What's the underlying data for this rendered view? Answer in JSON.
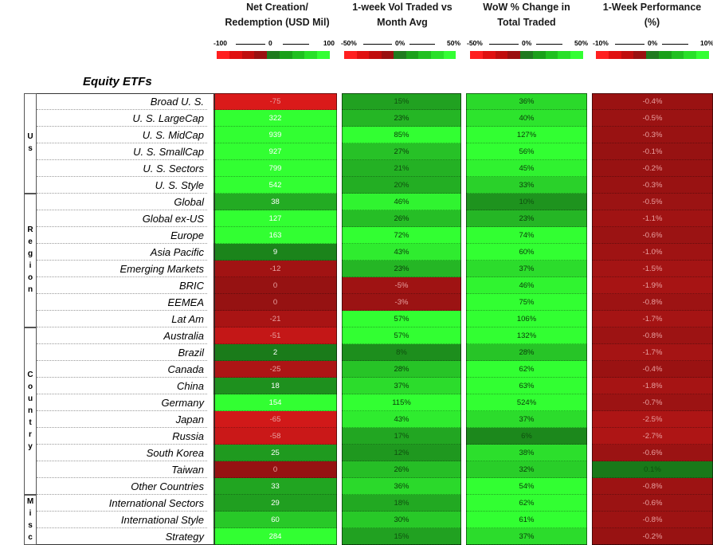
{
  "headers": [
    "Net Creation/\nRedemption (USD Mil)",
    "1-week Vol Traded vs\nMonth Avg",
    "WoW % Change in\nTotal Traded",
    "1-Week Performance\n(%)"
  ],
  "scales": [
    {
      "left": "-100",
      "mid": "0",
      "right": "100"
    },
    {
      "left": "-50%",
      "mid": "0%",
      "right": "50%"
    },
    {
      "left": "-50%",
      "mid": "0%",
      "right": "50%"
    },
    {
      "left": "-10%",
      "mid": "0%",
      "right": "10%"
    }
  ],
  "scale_colors": [
    "#ff1f1f",
    "#e01010",
    "#c00d0d",
    "#9a1010",
    "#1e7a1e",
    "#1aa01a",
    "#20c020",
    "#28e028",
    "#33ff33"
  ],
  "section_title": "Equity ETFs",
  "groups": [
    {
      "label": "Us",
      "rows": [
        0,
        5
      ]
    },
    {
      "label": "Region",
      "rows": [
        6,
        13
      ]
    },
    {
      "label": "Country",
      "rows": [
        14,
        23
      ]
    },
    {
      "label": "Misc",
      "rows": [
        24,
        26
      ]
    }
  ],
  "chart_data": {
    "type": "table",
    "columns": [
      "Net Creation/ Redemption (USD Mil)",
      "1-week Vol Traded vs Month Avg",
      "WoW % Change in Total Traded",
      "1-Week Performance (%)"
    ],
    "rows": [
      {
        "label": "Broad U. S.",
        "values": [
          "-75",
          "15%",
          "36%",
          "-0.4%"
        ],
        "nums": [
          -75,
          15,
          36,
          -0.4
        ]
      },
      {
        "label": "U. S. LargeCap",
        "values": [
          "322",
          "23%",
          "40%",
          "-0.5%"
        ],
        "nums": [
          322,
          23,
          40,
          -0.5
        ]
      },
      {
        "label": "U. S. MidCap",
        "values": [
          "939",
          "85%",
          "127%",
          "-0.3%"
        ],
        "nums": [
          939,
          85,
          127,
          -0.3
        ]
      },
      {
        "label": "U. S. SmallCap",
        "values": [
          "927",
          "27%",
          "56%",
          "-0.1%"
        ],
        "nums": [
          927,
          27,
          56,
          -0.1
        ]
      },
      {
        "label": "U. S. Sectors",
        "values": [
          "799",
          "21%",
          "45%",
          "-0.2%"
        ],
        "nums": [
          799,
          21,
          45,
          -0.2
        ]
      },
      {
        "label": "U. S. Style",
        "values": [
          "542",
          "20%",
          "33%",
          "-0.3%"
        ],
        "nums": [
          542,
          20,
          33,
          -0.3
        ]
      },
      {
        "label": "Global",
        "values": [
          "38",
          "46%",
          "10%",
          "-0.5%"
        ],
        "nums": [
          38,
          46,
          10,
          -0.5
        ]
      },
      {
        "label": "Global ex-US",
        "values": [
          "127",
          "26%",
          "23%",
          "-1.1%"
        ],
        "nums": [
          127,
          26,
          23,
          -1.1
        ]
      },
      {
        "label": "Europe",
        "values": [
          "163",
          "72%",
          "74%",
          "-0.6%"
        ],
        "nums": [
          163,
          72,
          74,
          -0.6
        ]
      },
      {
        "label": "Asia Pacific",
        "values": [
          "9",
          "43%",
          "60%",
          "-1.0%"
        ],
        "nums": [
          9,
          43,
          60,
          -1.0
        ]
      },
      {
        "label": "Emerging Markets",
        "values": [
          "-12",
          "23%",
          "37%",
          "-1.5%"
        ],
        "nums": [
          -12,
          23,
          37,
          -1.5
        ]
      },
      {
        "label": "BRIC",
        "values": [
          "0",
          "-5%",
          "46%",
          "-1.9%"
        ],
        "nums": [
          0,
          -5,
          46,
          -1.9
        ]
      },
      {
        "label": "EEMEA",
        "values": [
          "0",
          "-3%",
          "75%",
          "-0.8%"
        ],
        "nums": [
          0,
          -3,
          75,
          -0.8
        ]
      },
      {
        "label": "Lat Am",
        "values": [
          "-21",
          "57%",
          "106%",
          "-1.7%"
        ],
        "nums": [
          -21,
          57,
          106,
          -1.7
        ]
      },
      {
        "label": "Australia",
        "values": [
          "-51",
          "57%",
          "132%",
          "-0.8%"
        ],
        "nums": [
          -51,
          57,
          132,
          -0.8
        ]
      },
      {
        "label": "Brazil",
        "values": [
          "2",
          "8%",
          "28%",
          "-1.7%"
        ],
        "nums": [
          2,
          8,
          28,
          -1.7
        ]
      },
      {
        "label": "Canada",
        "values": [
          "-25",
          "28%",
          "62%",
          "-0.4%"
        ],
        "nums": [
          -25,
          28,
          62,
          -0.4
        ]
      },
      {
        "label": "China",
        "values": [
          "18",
          "37%",
          "63%",
          "-1.8%"
        ],
        "nums": [
          18,
          37,
          63,
          -1.8
        ]
      },
      {
        "label": "Germany",
        "values": [
          "154",
          "115%",
          "524%",
          "-0.7%"
        ],
        "nums": [
          154,
          115,
          524,
          -0.7
        ]
      },
      {
        "label": "Japan",
        "values": [
          "-65",
          "43%",
          "37%",
          "-2.5%"
        ],
        "nums": [
          -65,
          43,
          37,
          -2.5
        ]
      },
      {
        "label": "Russia",
        "values": [
          "-58",
          "17%",
          "6%",
          "-2.7%"
        ],
        "nums": [
          -58,
          17,
          6,
          -2.7
        ]
      },
      {
        "label": "South Korea",
        "values": [
          "25",
          "12%",
          "38%",
          "-0.6%"
        ],
        "nums": [
          25,
          12,
          38,
          -0.6
        ]
      },
      {
        "label": "Taiwan",
        "values": [
          "0",
          "26%",
          "32%",
          "0.1%"
        ],
        "nums": [
          0,
          26,
          32,
          0.1
        ]
      },
      {
        "label": "Other Countries",
        "values": [
          "33",
          "36%",
          "54%",
          "-0.8%"
        ],
        "nums": [
          33,
          36,
          54,
          -0.8
        ]
      },
      {
        "label": "International Sectors",
        "values": [
          "29",
          "18%",
          "62%",
          "-0.6%"
        ],
        "nums": [
          29,
          18,
          62,
          -0.6
        ]
      },
      {
        "label": "International Style",
        "values": [
          "60",
          "30%",
          "61%",
          "-0.8%"
        ],
        "nums": [
          60,
          30,
          61,
          -0.8
        ]
      },
      {
        "label": "Strategy",
        "values": [
          "284",
          "15%",
          "37%",
          "-0.2%"
        ],
        "nums": [
          284,
          15,
          37,
          -0.2
        ]
      }
    ],
    "color_scales": [
      [
        -100,
        100
      ],
      [
        -50,
        50
      ],
      [
        -50,
        50
      ],
      [
        -10,
        10
      ]
    ]
  }
}
